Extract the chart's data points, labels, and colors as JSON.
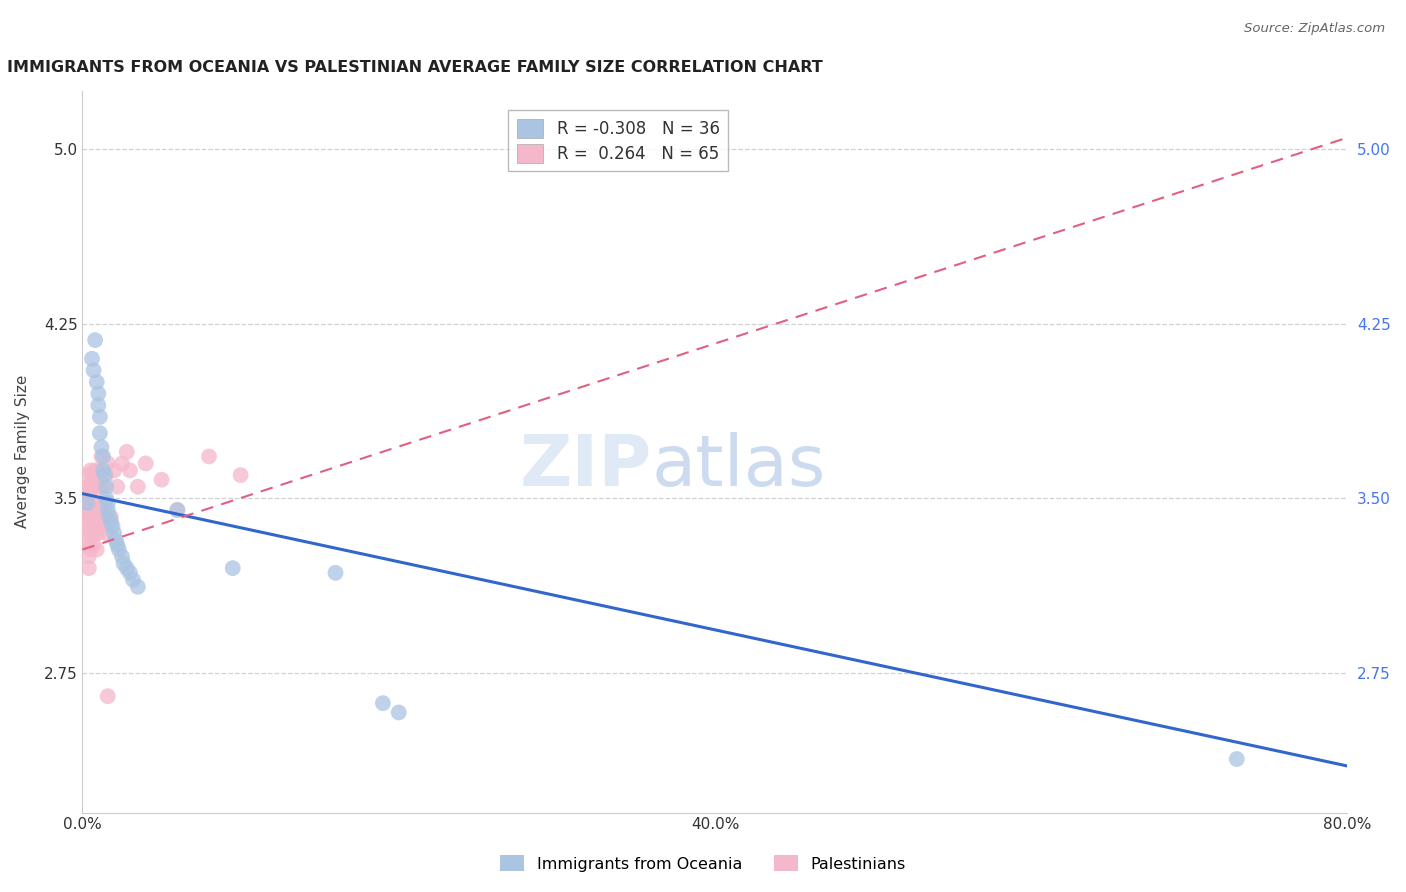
{
  "title": "IMMIGRANTS FROM OCEANIA VS PALESTINIAN AVERAGE FAMILY SIZE CORRELATION CHART",
  "source": "Source: ZipAtlas.com",
  "ylabel": "Average Family Size",
  "xlim": [
    0,
    0.8
  ],
  "ylim": [
    2.15,
    5.25
  ],
  "yticks": [
    2.75,
    3.5,
    4.25,
    5.0
  ],
  "xticks": [
    0.0,
    0.2,
    0.4,
    0.6,
    0.8
  ],
  "xticklabels": [
    "0.0%",
    "",
    "40.0%",
    "",
    "80.0%"
  ],
  "series1_name": "Immigrants from Oceania",
  "series1_color": "#aac4e2",
  "series1_line_color": "#3366cc",
  "series1_R": -0.308,
  "series1_N": 36,
  "series2_name": "Palestinians",
  "series2_color": "#f5b8cb",
  "series2_line_color": "#e06080",
  "series2_R": 0.264,
  "series2_N": 65,
  "background_color": "#ffffff",
  "grid_color": "#cccccc",
  "right_axis_color": "#4477ee",
  "right_yticks": [
    2.75,
    3.5,
    4.25,
    5.0
  ],
  "blue_line_x0": 0.0,
  "blue_line_y0": 3.52,
  "blue_line_x1": 0.8,
  "blue_line_y1": 2.35,
  "pink_line_x0": 0.0,
  "pink_line_y0": 3.28,
  "pink_line_x1": 0.8,
  "pink_line_y1": 5.05,
  "oceania_points": [
    [
      0.003,
      3.48
    ],
    [
      0.006,
      4.1
    ],
    [
      0.007,
      4.05
    ],
    [
      0.008,
      4.18
    ],
    [
      0.009,
      4.0
    ],
    [
      0.01,
      3.95
    ],
    [
      0.01,
      3.9
    ],
    [
      0.011,
      3.85
    ],
    [
      0.011,
      3.78
    ],
    [
      0.012,
      3.72
    ],
    [
      0.013,
      3.68
    ],
    [
      0.013,
      3.62
    ],
    [
      0.014,
      3.6
    ],
    [
      0.015,
      3.55
    ],
    [
      0.015,
      3.5
    ],
    [
      0.016,
      3.48
    ],
    [
      0.016,
      3.45
    ],
    [
      0.017,
      3.42
    ],
    [
      0.018,
      3.4
    ],
    [
      0.019,
      3.38
    ],
    [
      0.02,
      3.35
    ],
    [
      0.021,
      3.32
    ],
    [
      0.022,
      3.3
    ],
    [
      0.023,
      3.28
    ],
    [
      0.025,
      3.25
    ],
    [
      0.026,
      3.22
    ],
    [
      0.028,
      3.2
    ],
    [
      0.03,
      3.18
    ],
    [
      0.032,
      3.15
    ],
    [
      0.035,
      3.12
    ],
    [
      0.06,
      3.45
    ],
    [
      0.095,
      3.2
    ],
    [
      0.16,
      3.18
    ],
    [
      0.19,
      2.62
    ],
    [
      0.2,
      2.58
    ],
    [
      0.73,
      2.38
    ]
  ],
  "palestinians_points": [
    [
      0.001,
      3.42
    ],
    [
      0.001,
      3.45
    ],
    [
      0.002,
      3.52
    ],
    [
      0.002,
      3.38
    ],
    [
      0.002,
      3.48
    ],
    [
      0.003,
      3.42
    ],
    [
      0.003,
      3.55
    ],
    [
      0.003,
      3.35
    ],
    [
      0.003,
      3.6
    ],
    [
      0.004,
      3.3
    ],
    [
      0.004,
      3.25
    ],
    [
      0.004,
      3.2
    ],
    [
      0.004,
      3.55
    ],
    [
      0.005,
      3.62
    ],
    [
      0.005,
      3.45
    ],
    [
      0.005,
      3.5
    ],
    [
      0.005,
      3.42
    ],
    [
      0.005,
      3.38
    ],
    [
      0.005,
      3.35
    ],
    [
      0.005,
      3.28
    ],
    [
      0.005,
      3.3
    ],
    [
      0.006,
      3.45
    ],
    [
      0.006,
      3.55
    ],
    [
      0.006,
      3.4
    ],
    [
      0.006,
      3.35
    ],
    [
      0.006,
      3.6
    ],
    [
      0.007,
      3.38
    ],
    [
      0.007,
      3.48
    ],
    [
      0.007,
      3.3
    ],
    [
      0.007,
      3.55
    ],
    [
      0.008,
      3.42
    ],
    [
      0.008,
      3.38
    ],
    [
      0.008,
      3.62
    ],
    [
      0.008,
      3.35
    ],
    [
      0.009,
      3.28
    ],
    [
      0.009,
      3.55
    ],
    [
      0.009,
      3.58
    ],
    [
      0.01,
      3.62
    ],
    [
      0.01,
      3.35
    ],
    [
      0.01,
      3.45
    ],
    [
      0.011,
      3.38
    ],
    [
      0.011,
      3.55
    ],
    [
      0.012,
      3.42
    ],
    [
      0.012,
      3.68
    ],
    [
      0.012,
      3.45
    ],
    [
      0.012,
      3.38
    ],
    [
      0.013,
      3.42
    ],
    [
      0.013,
      3.55
    ],
    [
      0.014,
      3.48
    ],
    [
      0.015,
      3.6
    ],
    [
      0.015,
      3.35
    ],
    [
      0.016,
      3.65
    ],
    [
      0.016,
      2.65
    ],
    [
      0.018,
      3.42
    ],
    [
      0.02,
      3.62
    ],
    [
      0.022,
      3.55
    ],
    [
      0.025,
      3.65
    ],
    [
      0.028,
      3.7
    ],
    [
      0.03,
      3.62
    ],
    [
      0.035,
      3.55
    ],
    [
      0.04,
      3.65
    ],
    [
      0.05,
      3.58
    ],
    [
      0.06,
      3.45
    ],
    [
      0.08,
      3.68
    ],
    [
      0.1,
      3.6
    ]
  ]
}
